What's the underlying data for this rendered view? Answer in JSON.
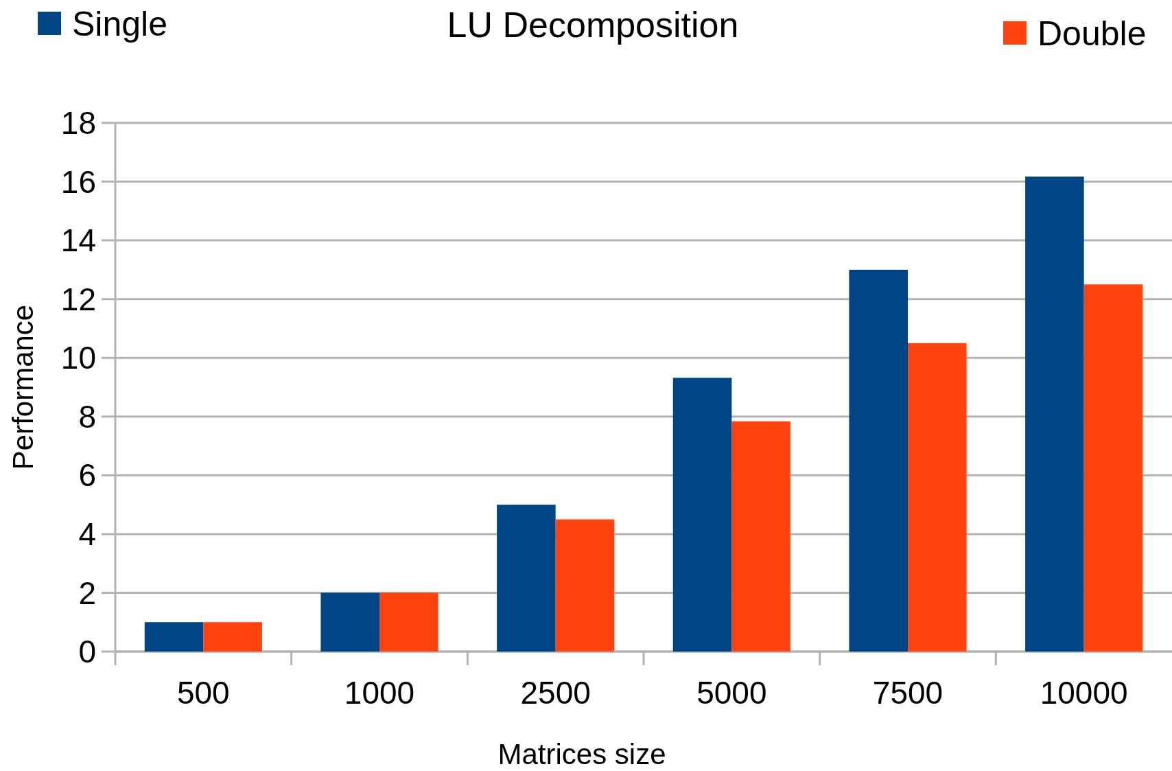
{
  "chart_data": {
    "type": "bar",
    "title": "LU Decomposition",
    "xlabel": "Matrices size",
    "ylabel": "Performance",
    "categories": [
      "500",
      "1000",
      "2500",
      "5000",
      "7500",
      "10000"
    ],
    "series": [
      {
        "name": "Single",
        "color": "#004586",
        "values": [
          1,
          2,
          5,
          9.32,
          13,
          16.17
        ]
      },
      {
        "name": "Double",
        "color": "#ff420e",
        "values": [
          1,
          2,
          4.5,
          7.84,
          10.5,
          12.5
        ]
      }
    ],
    "ylim": [
      0,
      18
    ],
    "yticks": [
      0,
      2,
      4,
      6,
      8,
      10,
      12,
      14,
      16,
      18
    ],
    "grid": "y",
    "legend": "top"
  }
}
